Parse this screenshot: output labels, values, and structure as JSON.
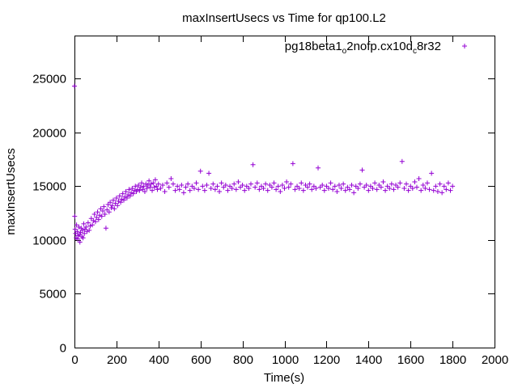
{
  "chart_data": {
    "type": "scatter",
    "title": "maxInsertUsecs vs Time for qp100.L2",
    "xlabel": "Time(s)",
    "ylabel": "maxInsertUsecs",
    "xlim": [
      0,
      2000
    ],
    "ylim": [
      0,
      29000
    ],
    "xticks": [
      0,
      200,
      400,
      600,
      800,
      1000,
      1200,
      1400,
      1600,
      1800,
      2000
    ],
    "yticks": [
      0,
      5000,
      10000,
      15000,
      20000,
      25000
    ],
    "grid": false,
    "legend_position": "top-right",
    "marker": "plus",
    "series": [
      {
        "name": "pg18beta1_o2nofp.cx10d_c8r32",
        "color": "#9400d3",
        "points": [
          [
            0,
            24300
          ],
          [
            1,
            12200
          ],
          [
            3,
            11000
          ],
          [
            5,
            10600
          ],
          [
            8,
            10200
          ],
          [
            10,
            11400
          ],
          [
            13,
            10800
          ],
          [
            16,
            10100
          ],
          [
            18,
            10400
          ],
          [
            21,
            11200
          ],
          [
            24,
            10500
          ],
          [
            26,
            9800
          ],
          [
            29,
            10700
          ],
          [
            32,
            11100
          ],
          [
            35,
            10300
          ],
          [
            38,
            10900
          ],
          [
            41,
            10200
          ],
          [
            44,
            11500
          ],
          [
            47,
            10600
          ],
          [
            50,
            11000
          ],
          [
            55,
            11200
          ],
          [
            60,
            10800
          ],
          [
            65,
            11600
          ],
          [
            70,
            10900
          ],
          [
            75,
            11300
          ],
          [
            80,
            12000
          ],
          [
            85,
            11400
          ],
          [
            90,
            11800
          ],
          [
            95,
            12400
          ],
          [
            100,
            11700
          ],
          [
            105,
            12100
          ],
          [
            110,
            12600
          ],
          [
            115,
            11900
          ],
          [
            120,
            12300
          ],
          [
            125,
            12900
          ],
          [
            130,
            12200
          ],
          [
            135,
            12700
          ],
          [
            140,
            13100
          ],
          [
            145,
            12400
          ],
          [
            150,
            11100
          ],
          [
            155,
            12800
          ],
          [
            160,
            13300
          ],
          [
            165,
            12600
          ],
          [
            170,
            13500
          ],
          [
            175,
            13000
          ],
          [
            180,
            13200
          ],
          [
            185,
            13700
          ],
          [
            190,
            12900
          ],
          [
            195,
            13400
          ],
          [
            200,
            13900
          ],
          [
            205,
            13200
          ],
          [
            210,
            13600
          ],
          [
            215,
            14100
          ],
          [
            220,
            13500
          ],
          [
            225,
            13800
          ],
          [
            230,
            14300
          ],
          [
            235,
            13700
          ],
          [
            240,
            14000
          ],
          [
            245,
            14500
          ],
          [
            250,
            13900
          ],
          [
            255,
            14200
          ],
          [
            260,
            14700
          ],
          [
            265,
            14100
          ],
          [
            270,
            14400
          ],
          [
            275,
            14800
          ],
          [
            280,
            14300
          ],
          [
            285,
            14600
          ],
          [
            290,
            15000
          ],
          [
            295,
            14500
          ],
          [
            300,
            14700
          ],
          [
            305,
            15100
          ],
          [
            310,
            14600
          ],
          [
            315,
            14900
          ],
          [
            320,
            15300
          ],
          [
            325,
            14700
          ],
          [
            330,
            15000
          ],
          [
            335,
            14500
          ],
          [
            340,
            15200
          ],
          [
            345,
            14800
          ],
          [
            350,
            15100
          ],
          [
            355,
            15500
          ],
          [
            360,
            14900
          ],
          [
            365,
            15200
          ],
          [
            370,
            14600
          ],
          [
            375,
            15300
          ],
          [
            380,
            14900
          ],
          [
            385,
            15600
          ],
          [
            390,
            15000
          ],
          [
            395,
            14700
          ],
          [
            400,
            15200
          ],
          [
            410,
            14800
          ],
          [
            420,
            15100
          ],
          [
            430,
            14500
          ],
          [
            440,
            15300
          ],
          [
            450,
            14900
          ],
          [
            460,
            15700
          ],
          [
            470,
            15200
          ],
          [
            480,
            14600
          ],
          [
            490,
            15000
          ],
          [
            500,
            14700
          ],
          [
            510,
            15100
          ],
          [
            520,
            14400
          ],
          [
            530,
            14900
          ],
          [
            540,
            15200
          ],
          [
            550,
            14600
          ],
          [
            560,
            15000
          ],
          [
            570,
            14800
          ],
          [
            580,
            15300
          ],
          [
            590,
            14700
          ],
          [
            600,
            16400
          ],
          [
            610,
            15000
          ],
          [
            620,
            14600
          ],
          [
            630,
            15100
          ],
          [
            640,
            16200
          ],
          [
            650,
            14800
          ],
          [
            660,
            15200
          ],
          [
            670,
            14700
          ],
          [
            680,
            15000
          ],
          [
            690,
            14500
          ],
          [
            700,
            15300
          ],
          [
            710,
            14900
          ],
          [
            720,
            15100
          ],
          [
            730,
            14600
          ],
          [
            740,
            15000
          ],
          [
            750,
            14800
          ],
          [
            760,
            15200
          ],
          [
            770,
            14700
          ],
          [
            780,
            15400
          ],
          [
            790,
            14900
          ],
          [
            800,
            15100
          ],
          [
            810,
            14600
          ],
          [
            820,
            15000
          ],
          [
            830,
            14800
          ],
          [
            840,
            15200
          ],
          [
            850,
            17000
          ],
          [
            860,
            14900
          ],
          [
            870,
            15300
          ],
          [
            880,
            14700
          ],
          [
            890,
            15000
          ],
          [
            900,
            14800
          ],
          [
            910,
            15200
          ],
          [
            920,
            14600
          ],
          [
            930,
            15100
          ],
          [
            940,
            14900
          ],
          [
            950,
            15300
          ],
          [
            960,
            14700
          ],
          [
            970,
            15000
          ],
          [
            980,
            14500
          ],
          [
            990,
            15100
          ],
          [
            1000,
            14800
          ],
          [
            1010,
            15400
          ],
          [
            1020,
            14900
          ],
          [
            1030,
            15200
          ],
          [
            1040,
            17100
          ],
          [
            1050,
            14700
          ],
          [
            1060,
            15000
          ],
          [
            1070,
            14800
          ],
          [
            1080,
            15300
          ],
          [
            1090,
            14600
          ],
          [
            1100,
            15100
          ],
          [
            1110,
            14900
          ],
          [
            1120,
            15200
          ],
          [
            1130,
            14700
          ],
          [
            1140,
            15000
          ],
          [
            1150,
            14800
          ],
          [
            1160,
            16700
          ],
          [
            1170,
            14900
          ],
          [
            1180,
            15100
          ],
          [
            1190,
            14600
          ],
          [
            1200,
            15000
          ],
          [
            1210,
            14800
          ],
          [
            1220,
            15300
          ],
          [
            1230,
            14700
          ],
          [
            1240,
            15000
          ],
          [
            1250,
            14500
          ],
          [
            1260,
            15100
          ],
          [
            1270,
            14800
          ],
          [
            1280,
            15200
          ],
          [
            1290,
            14600
          ],
          [
            1300,
            14900
          ],
          [
            1310,
            14700
          ],
          [
            1320,
            15100
          ],
          [
            1330,
            14400
          ],
          [
            1340,
            15000
          ],
          [
            1350,
            14800
          ],
          [
            1360,
            15200
          ],
          [
            1370,
            16500
          ],
          [
            1380,
            14900
          ],
          [
            1390,
            15100
          ],
          [
            1400,
            14600
          ],
          [
            1410,
            15000
          ],
          [
            1420,
            14800
          ],
          [
            1430,
            15300
          ],
          [
            1440,
            14700
          ],
          [
            1450,
            15100
          ],
          [
            1460,
            14900
          ],
          [
            1470,
            15400
          ],
          [
            1480,
            14600
          ],
          [
            1490,
            15000
          ],
          [
            1500,
            14800
          ],
          [
            1510,
            15200
          ],
          [
            1520,
            14700
          ],
          [
            1530,
            15100
          ],
          [
            1540,
            14900
          ],
          [
            1550,
            15300
          ],
          [
            1560,
            17300
          ],
          [
            1570,
            14800
          ],
          [
            1580,
            15200
          ],
          [
            1590,
            14600
          ],
          [
            1600,
            15000
          ],
          [
            1610,
            14800
          ],
          [
            1620,
            15400
          ],
          [
            1630,
            14900
          ],
          [
            1640,
            15700
          ],
          [
            1650,
            14600
          ],
          [
            1660,
            15100
          ],
          [
            1670,
            14800
          ],
          [
            1680,
            15300
          ],
          [
            1690,
            14700
          ],
          [
            1700,
            16200
          ],
          [
            1710,
            14600
          ],
          [
            1720,
            15000
          ],
          [
            1730,
            14500
          ],
          [
            1740,
            15200
          ],
          [
            1750,
            14400
          ],
          [
            1760,
            15000
          ],
          [
            1770,
            14700
          ],
          [
            1780,
            15300
          ],
          [
            1790,
            14600
          ],
          [
            1800,
            15000
          ]
        ]
      }
    ]
  }
}
